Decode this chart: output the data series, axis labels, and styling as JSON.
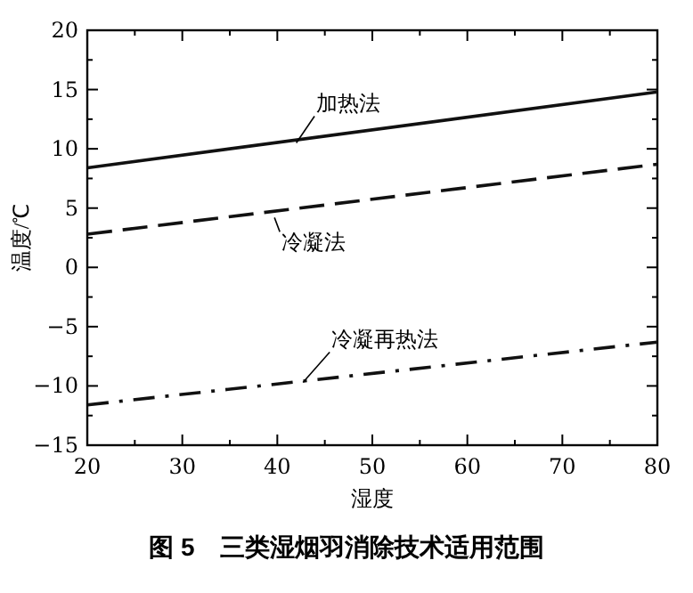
{
  "chart_data": {
    "type": "line",
    "xlabel": "湿度",
    "ylabel": "温度/℃",
    "title": "图 5　三类湿烟羽消除技术适用范围",
    "xlim": [
      20,
      80
    ],
    "ylim": [
      -15,
      20
    ],
    "xticks": [
      20,
      {
        "value": 25,
        "label": null
      },
      30,
      {
        "value": 35,
        "label": null
      },
      40,
      {
        "value": 45,
        "label": null
      },
      50,
      {
        "value": 55,
        "label": null
      },
      60,
      {
        "value": 65,
        "label": null
      },
      70,
      {
        "value": 75,
        "label": null
      },
      80
    ],
    "yticks": [
      -15,
      {
        "value": -12.5,
        "label": null
      },
      -10,
      {
        "value": -7.5,
        "label": null
      },
      -5,
      {
        "value": -2.5,
        "label": null
      },
      0,
      {
        "value": 2.5,
        "label": null
      },
      5,
      {
        "value": 7.5,
        "label": null
      },
      10,
      {
        "value": 12.5,
        "label": null
      },
      15,
      {
        "value": 17.5,
        "label": null
      },
      20
    ],
    "grid": false,
    "x": [
      20,
      80
    ],
    "series": [
      {
        "values": [
          8.4,
          14.8
        ],
        "color": "#111111",
        "line_style": "solid"
      },
      {
        "values": [
          2.8,
          8.7
        ],
        "color": "#111111",
        "line_style": "dashed"
      },
      {
        "values": [
          -11.6,
          -6.3
        ],
        "color": "#111111",
        "line_style": "dashdot"
      }
    ],
    "annotations": [
      {
        "text": "加热法",
        "x": 42,
        "y": 10.5
      },
      {
        "text": "冷凝法",
        "x": 39.7,
        "y": 4.2
      },
      {
        "text": "冷凝再热法",
        "x": 42.7,
        "y": -9.7
      }
    ]
  }
}
